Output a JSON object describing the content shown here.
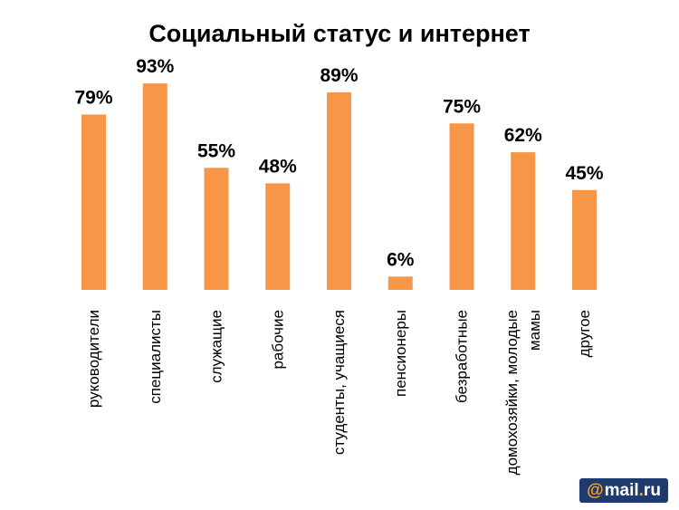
{
  "chart_data": {
    "type": "bar",
    "title": "Социальный статус и интернет",
    "categories": [
      "руководители",
      "специалисты",
      "служащие",
      "рабочие",
      "студенты, учащиеся",
      "пенсионеры",
      "безработные",
      "домохозяйки, молодые мамы",
      "другое"
    ],
    "category_lines": [
      [
        "руководители"
      ],
      [
        "специалисты"
      ],
      [
        "служащие"
      ],
      [
        "рабочие"
      ],
      [
        "студенты, учащиеся"
      ],
      [
        "пенсионеры"
      ],
      [
        "безработные"
      ],
      [
        "домохозяйки, молодые",
        "мамы"
      ],
      [
        "другое"
      ]
    ],
    "values": [
      79,
      93,
      55,
      48,
      89,
      6,
      75,
      62,
      45
    ],
    "value_labels": [
      "79%",
      "93%",
      "55%",
      "48%",
      "89%",
      "6%",
      "75%",
      "62%",
      "45%"
    ],
    "ylim": [
      0,
      100
    ],
    "grid": false,
    "bar_color": "#f79646",
    "xlabel": "",
    "ylabel": ""
  },
  "logo": {
    "prefix": "@",
    "name": "mail",
    "dot": ".",
    "suffix": "ru"
  }
}
